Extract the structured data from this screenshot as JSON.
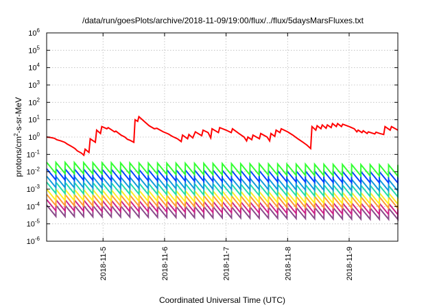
{
  "chart_data": {
    "type": "line",
    "title": "/data/run/goesPlots/archive/2018-11-09/19:00/flux/../flux/5daysMarsFluxes.txt",
    "xlabel": "Coordinated Universal Time (UTC)",
    "ylabel": "protons/cm²-s-sr-MeV",
    "ylabel_parts": {
      "pre": "protons/cm",
      "sup": "2",
      "post": "-s-sr-MeV"
    },
    "yscale": "log",
    "ylim": [
      1e-06,
      1000000.0
    ],
    "y_ticks": [
      {
        "base": "10",
        "exp": "-6"
      },
      {
        "base": "10",
        "exp": "-5"
      },
      {
        "base": "10",
        "exp": "-4"
      },
      {
        "base": "10",
        "exp": "-3"
      },
      {
        "base": "10",
        "exp": "-2"
      },
      {
        "base": "10",
        "exp": "-1"
      },
      {
        "base": "10",
        "exp": "0"
      },
      {
        "base": "10",
        "exp": "1"
      },
      {
        "base": "10",
        "exp": "2"
      },
      {
        "base": "10",
        "exp": "3"
      },
      {
        "base": "10",
        "exp": "4"
      },
      {
        "base": "10",
        "exp": "5"
      },
      {
        "base": "10",
        "exp": "6"
      }
    ],
    "xlim": [
      "2018-11-04T02:00",
      "2018-11-09T19:00"
    ],
    "x_ticks": [
      "2018-11-5",
      "2018-11-6",
      "2018-11-7",
      "2018-11-8",
      "2018-11-9"
    ],
    "x_tick_times": [
      "2018-11-05T00:00",
      "2018-11-06T00:00",
      "2018-11-07T00:00",
      "2018-11-08T00:00",
      "2018-11-09T00:00"
    ],
    "grid": true,
    "sawtooth_teeth": 38,
    "sawtooth_drop_decades": 0.65,
    "series": [
      {
        "color": "#ff0000",
        "style": "stepped-decay",
        "points": [
          [
            "2018-11-04T02:00",
            1.0
          ],
          [
            "2018-11-04T03:30",
            0.95
          ],
          [
            "2018-11-04T05:00",
            0.85
          ],
          [
            "2018-11-04T06:00",
            0.7
          ],
          [
            "2018-11-04T07:30",
            0.6
          ],
          [
            "2018-11-04T09:00",
            0.5
          ],
          [
            "2018-11-04T10:00",
            0.4
          ],
          [
            "2018-11-04T11:30",
            0.3
          ],
          [
            "2018-11-04T13:00",
            0.22
          ],
          [
            "2018-11-04T14:00",
            0.16
          ],
          [
            "2018-11-04T15:30",
            0.12
          ],
          [
            "2018-11-04T16:30",
            0.09
          ],
          [
            "2018-11-04T17:00",
            0.2
          ],
          [
            "2018-11-04T18:30",
            0.13
          ],
          [
            "2018-11-04T19:00",
            0.8
          ],
          [
            "2018-11-04T21:00",
            0.5
          ],
          [
            "2018-11-04T21:30",
            2.5
          ],
          [
            "2018-11-04T23:00",
            1.6
          ],
          [
            "2018-11-04T23:30",
            4.0
          ],
          [
            "2018-11-05T01:30",
            3.0
          ],
          [
            "2018-11-05T02:00",
            3.5
          ],
          [
            "2018-11-05T04:30",
            2.0
          ],
          [
            "2018-11-05T05:00",
            2.2
          ],
          [
            "2018-11-05T07:00",
            1.3
          ],
          [
            "2018-11-05T08:30",
            1.0
          ],
          [
            "2018-11-05T09:30",
            0.75
          ],
          [
            "2018-11-05T10:30",
            0.65
          ],
          [
            "2018-11-05T12:00",
            0.5
          ],
          [
            "2018-11-05T12:30",
            10.0
          ],
          [
            "2018-11-05T13:30",
            8.0
          ],
          [
            "2018-11-05T14:00",
            15.0
          ],
          [
            "2018-11-05T15:00",
            11.0
          ],
          [
            "2018-11-05T16:30",
            7.0
          ],
          [
            "2018-11-05T18:00",
            4.5
          ],
          [
            "2018-11-05T20:00",
            3.0
          ],
          [
            "2018-11-05T21:00",
            3.2
          ],
          [
            "2018-11-05T23:30",
            2.0
          ],
          [
            "2018-11-06T01:30",
            1.5
          ],
          [
            "2018-11-06T03:00",
            1.1
          ],
          [
            "2018-11-06T05:00",
            0.8
          ],
          [
            "2018-11-06T06:30",
            0.55
          ],
          [
            "2018-11-06T07:00",
            1.3
          ],
          [
            "2018-11-06T09:00",
            0.8
          ],
          [
            "2018-11-06T09:30",
            1.4
          ],
          [
            "2018-11-06T11:00",
            0.9
          ],
          [
            "2018-11-06T12:00",
            2.0
          ],
          [
            "2018-11-06T14:30",
            1.2
          ],
          [
            "2018-11-06T15:00",
            2.5
          ],
          [
            "2018-11-06T17:00",
            1.8
          ],
          [
            "2018-11-06T18:00",
            0.9
          ],
          [
            "2018-11-06T18:30",
            3.0
          ],
          [
            "2018-11-06T21:00",
            1.8
          ],
          [
            "2018-11-06T21:30",
            3.5
          ],
          [
            "2018-11-07T00:00",
            2.5
          ],
          [
            "2018-11-07T02:00",
            1.8
          ],
          [
            "2018-11-07T02:30",
            3.0
          ],
          [
            "2018-11-07T05:00",
            1.6
          ],
          [
            "2018-11-07T07:00",
            1.0
          ],
          [
            "2018-11-07T08:00",
            0.6
          ],
          [
            "2018-11-07T08:30",
            1.0
          ],
          [
            "2018-11-07T10:00",
            0.7
          ],
          [
            "2018-11-07T10:30",
            1.3
          ],
          [
            "2018-11-07T13:00",
            0.8
          ],
          [
            "2018-11-07T13:30",
            1.6
          ],
          [
            "2018-11-07T16:00",
            1.0
          ],
          [
            "2018-11-07T17:00",
            0.6
          ],
          [
            "2018-11-07T17:30",
            1.6
          ],
          [
            "2018-11-07T19:00",
            1.1
          ],
          [
            "2018-11-07T19:30",
            2.5
          ],
          [
            "2018-11-07T21:00",
            1.8
          ],
          [
            "2018-11-07T21:30",
            3.0
          ],
          [
            "2018-11-08T00:00",
            2.0
          ],
          [
            "2018-11-08T02:00",
            1.3
          ],
          [
            "2018-11-08T04:00",
            0.8
          ],
          [
            "2018-11-08T06:00",
            0.5
          ],
          [
            "2018-11-08T07:30",
            0.35
          ],
          [
            "2018-11-08T09:00",
            0.22
          ],
          [
            "2018-11-08T09:30",
            4.0
          ],
          [
            "2018-11-08T11:00",
            2.5
          ],
          [
            "2018-11-08T11:30",
            4.5
          ],
          [
            "2018-11-08T13:00",
            3.0
          ],
          [
            "2018-11-08T13:30",
            5.0
          ],
          [
            "2018-11-08T15:00",
            3.2
          ],
          [
            "2018-11-08T15:30",
            5.0
          ],
          [
            "2018-11-08T17:00",
            3.5
          ],
          [
            "2018-11-08T17:30",
            6.0
          ],
          [
            "2018-11-08T19:00",
            4.0
          ],
          [
            "2018-11-08T19:30",
            6.0
          ],
          [
            "2018-11-08T21:00",
            4.0
          ],
          [
            "2018-11-08T21:30",
            5.5
          ],
          [
            "2018-11-09T00:00",
            4.0
          ],
          [
            "2018-11-09T02:00",
            3.0
          ],
          [
            "2018-11-09T03:00",
            2.0
          ],
          [
            "2018-11-09T03:30",
            2.5
          ],
          [
            "2018-11-09T05:00",
            1.8
          ],
          [
            "2018-11-09T05:30",
            2.3
          ],
          [
            "2018-11-09T07:00",
            1.6
          ],
          [
            "2018-11-09T07:30",
            2.0
          ],
          [
            "2018-11-09T10:00",
            1.5
          ],
          [
            "2018-11-09T10:30",
            1.9
          ],
          [
            "2018-11-09T12:00",
            1.6
          ],
          [
            "2018-11-09T13:30",
            1.4
          ],
          [
            "2018-11-09T14:00",
            4.0
          ],
          [
            "2018-11-09T16:00",
            2.5
          ],
          [
            "2018-11-09T16:30",
            4.0
          ],
          [
            "2018-11-09T19:00",
            2.5
          ]
        ]
      },
      {
        "color": "#33ff33",
        "style": "sawtooth",
        "peak": 0.035,
        "end_peak": 0.025
      },
      {
        "color": "#0044ff",
        "style": "sawtooth",
        "peak": 0.015,
        "end_peak": 0.01
      },
      {
        "color": "#1199dd",
        "style": "sawtooth",
        "peak": 0.0055,
        "end_peak": 0.0035
      },
      {
        "color": "#22ddaa",
        "style": "sawtooth",
        "peak": 0.0025,
        "end_peak": 0.0016
      },
      {
        "color": "#ffee22",
        "style": "sawtooth",
        "peak": 0.001,
        "end_peak": 0.0006
      },
      {
        "color": "#ff9933",
        "style": "sawtooth",
        "peak": 0.0005,
        "end_peak": 0.00035
      },
      {
        "color": "#cc2288",
        "style": "sawtooth",
        "peak": 0.00025,
        "end_peak": 0.00015
      },
      {
        "color": "#8a4a8a",
        "style": "sawtooth",
        "peak": 0.00012,
        "end_peak": 8e-05
      }
    ]
  }
}
